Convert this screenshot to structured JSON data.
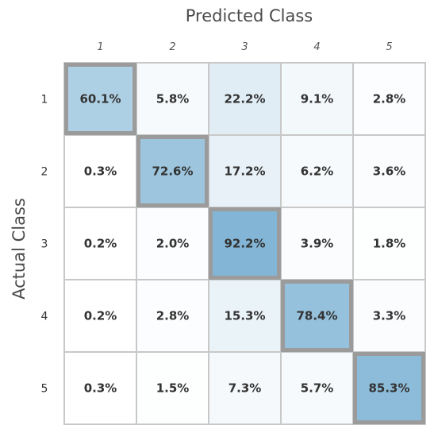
{
  "chart_data": {
    "type": "heatmap",
    "xlabel": "Predicted Class",
    "ylabel": "Actual Class",
    "x_categories": [
      "1",
      "2",
      "3",
      "4",
      "5"
    ],
    "y_categories": [
      "1",
      "2",
      "3",
      "4",
      "5"
    ],
    "values": [
      [
        60.1,
        5.8,
        22.2,
        9.1,
        2.8
      ],
      [
        0.3,
        72.6,
        17.2,
        6.2,
        3.6
      ],
      [
        0.2,
        2.0,
        92.2,
        3.9,
        1.8
      ],
      [
        0.2,
        2.8,
        15.3,
        78.4,
        3.3
      ],
      [
        0.3,
        1.5,
        7.3,
        5.7,
        85.3
      ]
    ],
    "value_labels": [
      [
        "60.1%",
        "5.8%",
        "22.2%",
        "9.1%",
        "2.8%"
      ],
      [
        "0.3%",
        "72.6%",
        "17.2%",
        "6.2%",
        "3.6%"
      ],
      [
        "0.2%",
        "2.0%",
        "92.2%",
        "3.9%",
        "1.8%"
      ],
      [
        "0.2%",
        "2.8%",
        "15.3%",
        "78.4%",
        "3.3%"
      ],
      [
        "0.3%",
        "1.5%",
        "7.3%",
        "5.7%",
        "85.3%"
      ]
    ],
    "value_range": [
      0,
      100
    ],
    "color_low": "#ffffff",
    "color_high": "#78b0d2",
    "grid_color": "#c8c8c8",
    "diagonal_border_color": "#9b9b9b",
    "text_color": "#333333",
    "diagonal_highlighted": true
  }
}
